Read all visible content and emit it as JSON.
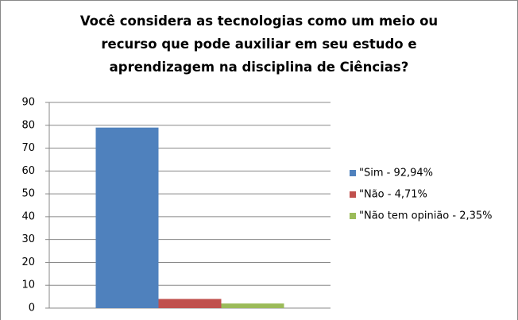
{
  "chart_data": {
    "type": "bar",
    "title": "Você considera as tecnologias como um meio ou recurso que pode auxiliar em seu estudo e aprendizagem na disciplina de Ciências?",
    "categories": [
      null
    ],
    "series": [
      {
        "name": "\"Sim - 92,94%",
        "color": "#4f81bd",
        "values": [
          79
        ]
      },
      {
        "name": "\"Não - 4,71%",
        "color": "#c0504d",
        "values": [
          4
        ]
      },
      {
        "name": "\"Não tem opinião - 2,35%",
        "color": "#9bbb59",
        "values": [
          2
        ]
      }
    ],
    "ylim": [
      0,
      90
    ],
    "yticks": [
      0,
      10,
      20,
      30,
      40,
      50,
      60,
      70,
      80,
      90
    ],
    "grid": true,
    "legend": "right"
  }
}
